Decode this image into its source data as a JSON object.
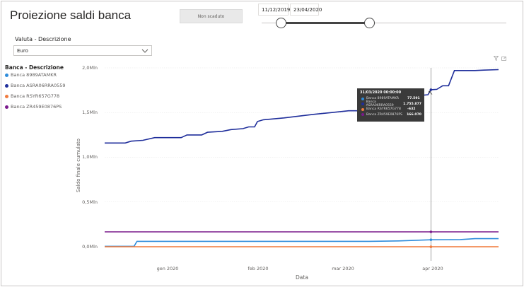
{
  "page": {
    "title": "Proiezione saldi banca"
  },
  "filter_button": {
    "label": "Non scaduto"
  },
  "date_slicer": {
    "start": "11/12/2019",
    "end": "23/04/2020",
    "start_fraction": 0.08,
    "end_fraction": 0.44
  },
  "valuta_slicer": {
    "label": "Valuta - Descrizione",
    "value": "Euro"
  },
  "legend": {
    "title": "Banca - Descrizione",
    "items": [
      {
        "label": "Banca 8989ATAMKR",
        "color": "#2e8cdb"
      },
      {
        "label": "Banca ASRA06RRA0559",
        "color": "#1f2e9b"
      },
      {
        "label": "Banca RSYR657G778",
        "color": "#f07b3f"
      },
      {
        "label": "Banca ZR459E0876PS",
        "color": "#7a1a8c"
      }
    ]
  },
  "chart_icons": {
    "filter": "filter-icon",
    "focus": "focus-mode-icon"
  },
  "chart_data": {
    "type": "line",
    "xlabel": "Data",
    "ylabel": "Saldo finale cumulato",
    "x_ticks": [
      "gen 2020",
      "feb 2020",
      "mar 2020",
      "apr 2020"
    ],
    "y_ticks": [
      "0,0Mln",
      "0,5Mln",
      "1,0Mln",
      "1,5Mln",
      "2,0Mln"
    ],
    "ylim": [
      0,
      2000000
    ],
    "x_range": [
      "2019-12-11",
      "2020-04-23"
    ],
    "grid": true,
    "series": [
      {
        "name": "Banca ASRA06RRA0559",
        "color": "#1f2e9b",
        "points": [
          [
            "2019-12-11",
            1160000
          ],
          [
            "2019-12-18",
            1160000
          ],
          [
            "2019-12-20",
            1180000
          ],
          [
            "2019-12-24",
            1190000
          ],
          [
            "2019-12-28",
            1220000
          ],
          [
            "2020-01-06",
            1220000
          ],
          [
            "2020-01-08",
            1250000
          ],
          [
            "2020-01-13",
            1250000
          ],
          [
            "2020-01-15",
            1280000
          ],
          [
            "2020-01-20",
            1290000
          ],
          [
            "2020-01-23",
            1310000
          ],
          [
            "2020-01-27",
            1320000
          ],
          [
            "2020-01-29",
            1340000
          ],
          [
            "2020-01-31",
            1340000
          ],
          [
            "2020-02-01",
            1400000
          ],
          [
            "2020-02-03",
            1420000
          ],
          [
            "2020-02-10",
            1440000
          ],
          [
            "2020-02-15",
            1460000
          ],
          [
            "2020-02-20",
            1480000
          ],
          [
            "2020-02-26",
            1500000
          ],
          [
            "2020-03-03",
            1520000
          ],
          [
            "2020-03-10",
            1520000
          ],
          [
            "2020-03-12",
            1580000
          ],
          [
            "2020-03-17",
            1580000
          ],
          [
            "2020-03-20",
            1600000
          ],
          [
            "2020-03-25",
            1620000
          ],
          [
            "2020-03-27",
            1690000
          ],
          [
            "2020-03-30",
            1700000
          ],
          [
            "2020-03-31",
            1755877
          ],
          [
            "2020-04-02",
            1760000
          ],
          [
            "2020-04-04",
            1800000
          ],
          [
            "2020-04-06",
            1800000
          ],
          [
            "2020-04-08",
            1970000
          ],
          [
            "2020-04-15",
            1970000
          ],
          [
            "2020-04-18",
            1975000
          ],
          [
            "2020-04-23",
            1980000
          ]
        ]
      },
      {
        "name": "Banca 8989ATAMKR",
        "color": "#2e8cdb",
        "points": [
          [
            "2019-12-11",
            5000
          ],
          [
            "2019-12-21",
            5000
          ],
          [
            "2019-12-22",
            60000
          ],
          [
            "2020-03-10",
            60000
          ],
          [
            "2020-03-20",
            65000
          ],
          [
            "2020-03-31",
            77591
          ],
          [
            "2020-04-10",
            80000
          ],
          [
            "2020-04-15",
            90000
          ],
          [
            "2020-04-23",
            90000
          ]
        ]
      },
      {
        "name": "Banca RSYR657G778",
        "color": "#f07b3f",
        "points": [
          [
            "2019-12-11",
            -632
          ],
          [
            "2020-04-23",
            -632
          ]
        ]
      },
      {
        "name": "Banca ZR459E0876PS",
        "color": "#7a1a8c",
        "points": [
          [
            "2019-12-11",
            166070
          ],
          [
            "2020-04-23",
            166070
          ]
        ]
      }
    ],
    "hover": {
      "date": "2020-03-31",
      "title": "31/03/2020 00:00:00",
      "rows": [
        {
          "name": "Banca 8989ATAMKR",
          "value": "77.591",
          "color": "#2e8cdb"
        },
        {
          "name": "Banca ASRA06RRA0559",
          "value": "1.755.877",
          "color": "#1f2e9b"
        },
        {
          "name": "Banca RSYR657G778",
          "value": "-632",
          "color": "#f07b3f"
        },
        {
          "name": "Banca ZR459E0876PS",
          "value": "166.070",
          "color": "#7a1a8c"
        }
      ]
    }
  }
}
